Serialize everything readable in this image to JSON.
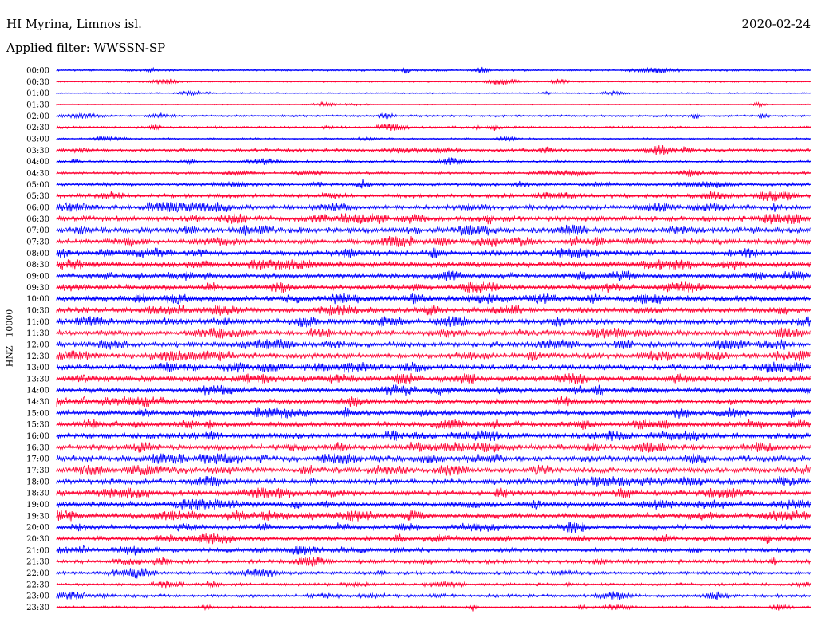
{
  "header": {
    "station": "HI Myrina, Limnos isl.",
    "date": "2020-02-24",
    "filter": "Applied filter: WWSSN-SP"
  },
  "chart_data": {
    "type": "line",
    "title": "HI Myrina, Limnos isl.",
    "subtitle": "Applied filter: WWSSN-SP",
    "date": "2020-02-24",
    "ylabel": "HNZ - 10000",
    "xlabel": "",
    "grid": false,
    "legend": "none",
    "row_colors": [
      "#0000ff",
      "#ff0033"
    ],
    "rows": [
      {
        "time": "00:00",
        "activity": 0.25
      },
      {
        "time": "00:30",
        "activity": 0.15
      },
      {
        "time": "01:00",
        "activity": 0.1
      },
      {
        "time": "01:30",
        "activity": 0.05
      },
      {
        "time": "02:00",
        "activity": 0.25
      },
      {
        "time": "02:30",
        "activity": 0.3
      },
      {
        "time": "03:00",
        "activity": 0.2
      },
      {
        "time": "03:30",
        "activity": 0.45
      },
      {
        "time": "04:00",
        "activity": 0.3
      },
      {
        "time": "04:30",
        "activity": 0.35
      },
      {
        "time": "05:00",
        "activity": 0.5
      },
      {
        "time": "05:30",
        "activity": 0.6
      },
      {
        "time": "06:00",
        "activity": 0.75
      },
      {
        "time": "06:30",
        "activity": 0.9
      },
      {
        "time": "07:00",
        "activity": 0.95
      },
      {
        "time": "07:30",
        "activity": 0.85
      },
      {
        "time": "08:00",
        "activity": 0.85
      },
      {
        "time": "08:30",
        "activity": 0.9
      },
      {
        "time": "09:00",
        "activity": 0.85
      },
      {
        "time": "09:30",
        "activity": 0.85
      },
      {
        "time": "10:00",
        "activity": 0.95
      },
      {
        "time": "10:30",
        "activity": 0.9
      },
      {
        "time": "11:00",
        "activity": 0.95
      },
      {
        "time": "11:30",
        "activity": 0.85
      },
      {
        "time": "12:00",
        "activity": 0.9
      },
      {
        "time": "12:30",
        "activity": 0.9
      },
      {
        "time": "13:00",
        "activity": 0.9
      },
      {
        "time": "13:30",
        "activity": 0.95
      },
      {
        "time": "14:00",
        "activity": 0.8
      },
      {
        "time": "14:30",
        "activity": 0.75
      },
      {
        "time": "15:00",
        "activity": 0.85
      },
      {
        "time": "15:30",
        "activity": 0.9
      },
      {
        "time": "16:00",
        "activity": 0.95
      },
      {
        "time": "16:30",
        "activity": 0.9
      },
      {
        "time": "17:00",
        "activity": 1.0
      },
      {
        "time": "17:30",
        "activity": 0.95
      },
      {
        "time": "18:00",
        "activity": 0.9
      },
      {
        "time": "18:30",
        "activity": 0.85
      },
      {
        "time": "19:00",
        "activity": 0.85
      },
      {
        "time": "19:30",
        "activity": 0.9
      },
      {
        "time": "20:00",
        "activity": 0.75
      },
      {
        "time": "20:30",
        "activity": 0.7
      },
      {
        "time": "21:00",
        "activity": 0.65
      },
      {
        "time": "21:30",
        "activity": 0.6
      },
      {
        "time": "22:00",
        "activity": 0.5
      },
      {
        "time": "22:30",
        "activity": 0.4
      },
      {
        "time": "23:00",
        "activity": 0.45
      },
      {
        "time": "23:30",
        "activity": 0.3
      }
    ]
  }
}
